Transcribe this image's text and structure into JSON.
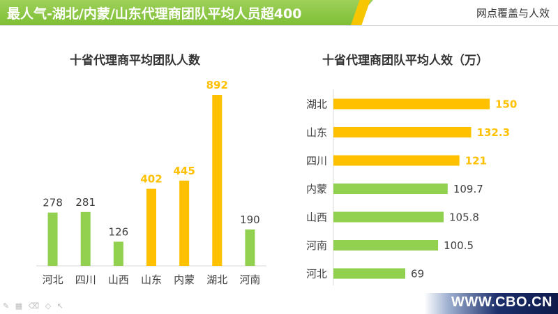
{
  "header": {
    "title": "最人气-湖北/内蒙/山东代理商团队平均人员超400",
    "right_label": "网点覆盖与人效"
  },
  "colors": {
    "green": "#92d050",
    "yellow": "#ffc000",
    "axis": "#d9d9d9",
    "text": "#404040"
  },
  "footer": {
    "url": "WWW.CBO.CN"
  },
  "toolbar_icons": [
    "pen-icon",
    "grid-icon",
    "eraser-icon",
    "shape-icon",
    "pointer-icon"
  ],
  "chart_data": [
    {
      "type": "bar",
      "title": "十省代理商平均团队人数",
      "categories": [
        "河北",
        "四川",
        "山西",
        "山东",
        "内蒙",
        "湖北",
        "河南"
      ],
      "values": [
        278,
        281,
        126,
        402,
        445,
        892,
        190
      ],
      "highlight": [
        false,
        false,
        false,
        true,
        true,
        true,
        false
      ],
      "ylim": [
        0,
        892
      ],
      "grid": false,
      "legend": "none"
    },
    {
      "type": "bar",
      "orientation": "horizontal",
      "title": "十省代理商团队平均人效（万）",
      "categories": [
        "湖北",
        "山东",
        "四川",
        "内蒙",
        "山西",
        "河南",
        "河北"
      ],
      "values": [
        150,
        132.3,
        121,
        109.7,
        105.8,
        100.5,
        69
      ],
      "highlight": [
        true,
        true,
        true,
        false,
        false,
        false,
        false
      ],
      "xlim": [
        0,
        150
      ],
      "grid": false,
      "legend": "none"
    }
  ]
}
